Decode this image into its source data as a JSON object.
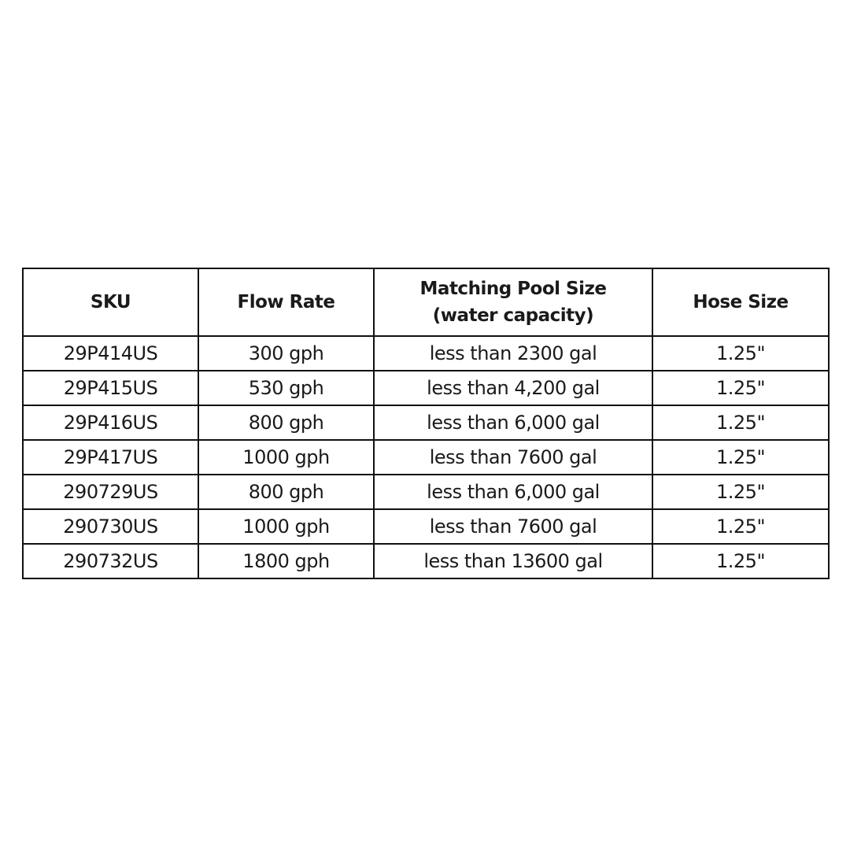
{
  "table": {
    "headers": [
      "SKU",
      "Flow Rate",
      "Matching Pool Size",
      "Hose Size"
    ],
    "header_sub": "(water capacity)",
    "rows": [
      [
        "29P414US",
        "300 gph",
        "less than 2300 gal",
        "1.25\""
      ],
      [
        "29P415US",
        "530 gph",
        "less than 4,200 gal",
        "1.25\""
      ],
      [
        "29P416US",
        "800 gph",
        "less than 6,000 gal",
        "1.25\""
      ],
      [
        "29P417US",
        "1000 gph",
        "less than 7600 gal",
        "1.25\""
      ],
      [
        "290729US",
        "800 gph",
        "less than 6,000 gal",
        "1.25\""
      ],
      [
        "290730US",
        "1000 gph",
        "less than 7600 gal",
        "1.25\""
      ],
      [
        "290732US",
        "1800 gph",
        "less than 13600 gal",
        "1.25\""
      ]
    ]
  }
}
